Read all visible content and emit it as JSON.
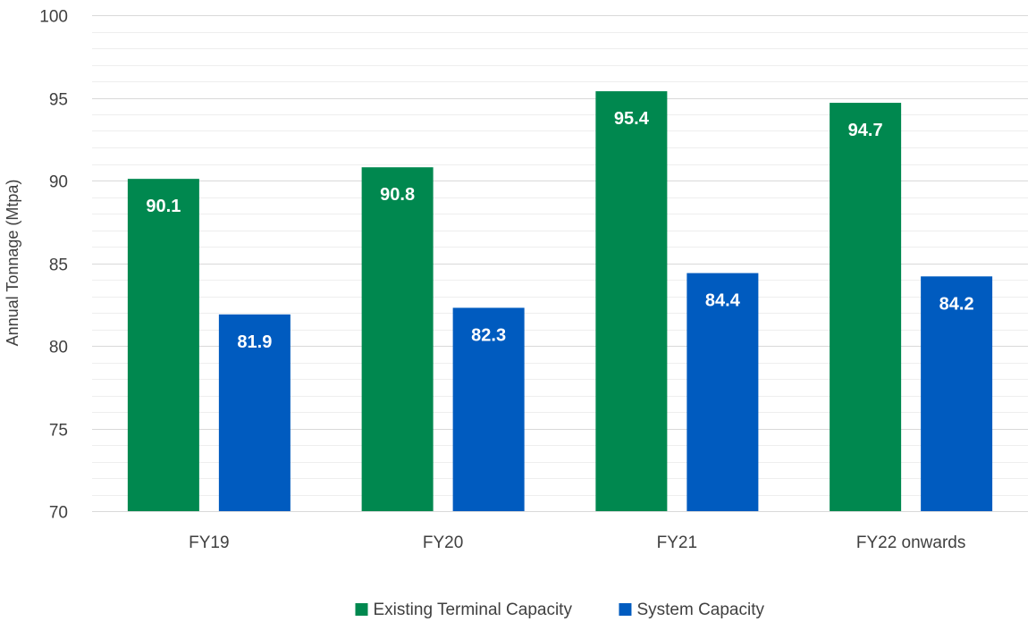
{
  "chart_data": {
    "type": "bar",
    "title": "",
    "xlabel": "",
    "ylabel": "Annual Tonnage (Mtpa)",
    "ylim": [
      70,
      100
    ],
    "y_major_ticks": [
      70,
      75,
      80,
      85,
      90,
      95,
      100
    ],
    "y_minor_step": 1,
    "grid": true,
    "legend_position": "bottom",
    "categories": [
      "FY19",
      "FY20",
      "FY21",
      "FY22 onwards"
    ],
    "series": [
      {
        "name": "Existing Terminal Capacity",
        "color": "#00884f",
        "values": [
          90.1,
          90.8,
          95.4,
          94.7
        ],
        "labels": [
          "90.1",
          "90.8",
          "95.4",
          "94.7"
        ]
      },
      {
        "name": "System Capacity",
        "color": "#005bbf",
        "values": [
          81.9,
          82.3,
          84.4,
          84.2
        ],
        "labels": [
          "81.9",
          "82.3",
          "84.4",
          "84.2"
        ]
      }
    ]
  }
}
